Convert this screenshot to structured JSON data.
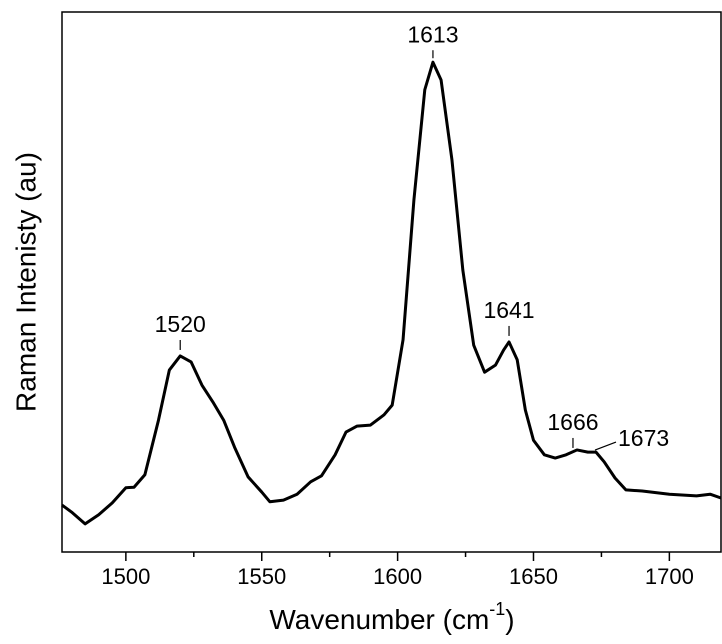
{
  "chart_data": {
    "type": "line",
    "xlabel": {
      "text": "Wavenumber (cm",
      "sup": "-1",
      "end": ")"
    },
    "ylabel": "Raman Intenisty (au)",
    "xlim": [
      1476.5,
      1719
    ],
    "ylim": [
      0,
      100
    ],
    "xticks": [
      1500,
      1550,
      1600,
      1650,
      1700
    ],
    "xminorticks": [
      1525,
      1575,
      1625,
      1675
    ],
    "color": "#000000",
    "x": [
      1476.5,
      1480,
      1485,
      1490,
      1495,
      1500,
      1503,
      1507,
      1512,
      1516,
      1520,
      1524,
      1528,
      1532,
      1536,
      1540,
      1545,
      1550,
      1553,
      1558,
      1563,
      1568,
      1572,
      1577,
      1581,
      1585,
      1590,
      1595,
      1598,
      1602,
      1606,
      1610,
      1613,
      1616,
      1620,
      1624,
      1628,
      1632,
      1636,
      1639,
      1641,
      1644,
      1647,
      1650,
      1654,
      1658,
      1662,
      1666,
      1670,
      1673,
      1676,
      1680,
      1684,
      1690,
      1700,
      1710,
      1715,
      1719
    ],
    "values": [
      8.7,
      7.4,
      5.2,
      6.9,
      9.1,
      11.9,
      12.0,
      14.3,
      24.4,
      33.7,
      36.3,
      35.2,
      30.9,
      27.8,
      24.4,
      19.4,
      13.9,
      11.1,
      9.3,
      9.6,
      10.7,
      13.0,
      14.1,
      18.0,
      22.2,
      23.3,
      23.5,
      25.4,
      27.2,
      39.3,
      65.2,
      85.6,
      90.7,
      87.4,
      72.6,
      52.2,
      38.3,
      33.3,
      34.6,
      37.4,
      38.9,
      35.6,
      26.3,
      20.7,
      18.0,
      17.4,
      18.0,
      18.9,
      18.5,
      18.5,
      16.7,
      13.7,
      11.5,
      11.3,
      10.7,
      10.4,
      10.7,
      10.0
    ],
    "annotations": [
      {
        "text": "1520",
        "x": 1520,
        "y": 36.3
      },
      {
        "text": "1613",
        "x": 1613,
        "y": 90.7
      },
      {
        "text": "1641",
        "x": 1641,
        "y": 38.9
      },
      {
        "text": "1666",
        "x": 1666,
        "y": 18.9
      },
      {
        "text": "1673",
        "x": 1673,
        "y": 18.5
      }
    ]
  }
}
